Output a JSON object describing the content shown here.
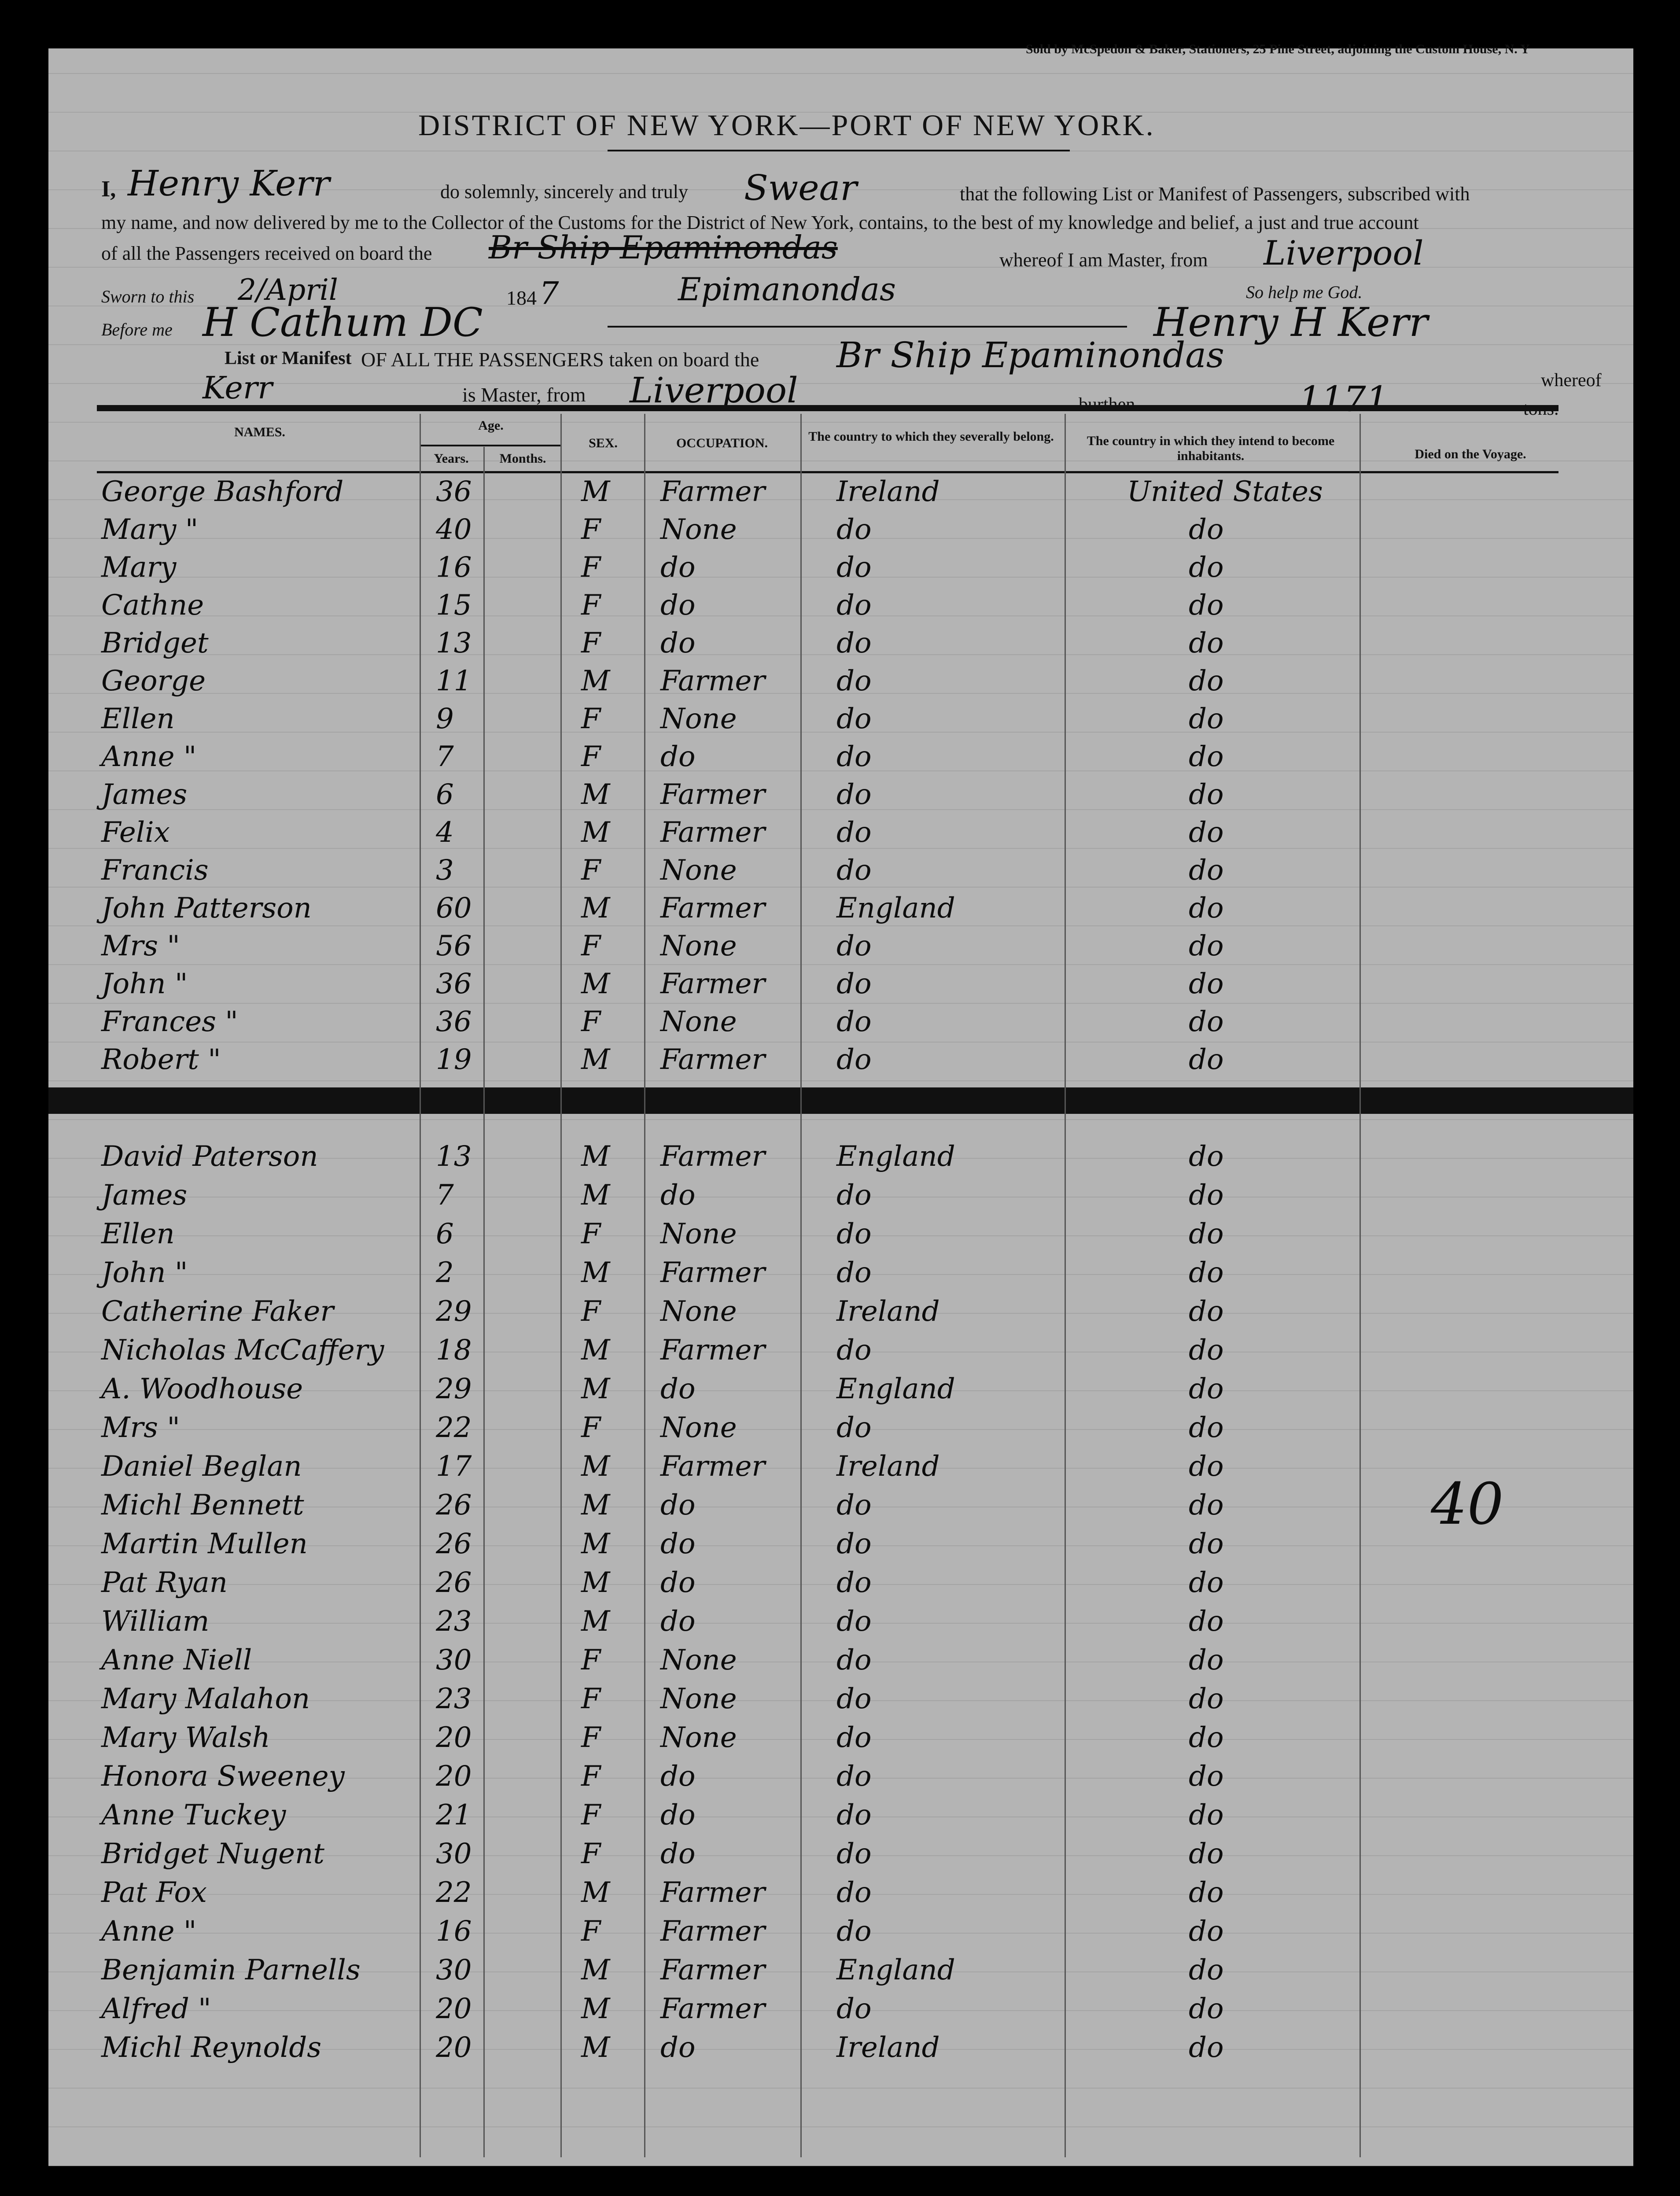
{
  "header": {
    "stationer": "Sold by McSpedon & Baker, Stationers, 25 Pine Street, adjoining the Custom House, N. Y",
    "title": "DISTRICT OF NEW YORK—PORT OF NEW YORK.",
    "oath_i": "I,",
    "master_name": "Henry Kerr",
    "oath_1": "do solemnly, sincerely and truly",
    "oath_verb": "Swear",
    "oath_2": "that the following List or Manifest of Passengers, subscribed with",
    "oath_3": "my name, and now delivered by me to the Collector of the Customs for the District of New York, contains, to the best of my knowledge and belief, a just and true account",
    "oath_4": "of all the Passengers received on board the",
    "ship_written": "Br Ship Epaminondas",
    "ship_correction": "Epimanondas",
    "oath_5": "whereof I am Master, from",
    "port_from": "Liverpool",
    "so_help": "So help me God.",
    "sworn_label": "Sworn to this",
    "sworn_date": "2/April",
    "year_prefix": "184",
    "year_written": "7",
    "before_label": "Before me",
    "before_sig": "H Cathum DC",
    "master_signature": "Henry H Kerr",
    "list_label": "List or Manifest",
    "list_1": "OF ALL THE PASSENGERS taken on board the",
    "ship_2": "Br Ship Epaminondas",
    "whereof": "whereof",
    "master_2": "Kerr",
    "is_master": "is Master, from",
    "port_2": "Liverpool",
    "burthen": "burthen",
    "tonnage": "1171",
    "tons": "tons."
  },
  "columns": {
    "names": "NAMES.",
    "age": "Age.",
    "years": "Years.",
    "months": "Months.",
    "sex": "SEX.",
    "occupation": "OCCUPATION.",
    "country_belong": "The country to which they severally belong.",
    "country_intend": "The country in which they intend to become inhabitants.",
    "died": "Died on the Voyage."
  },
  "passengers_top": [
    [
      "George Bashford",
      "36",
      "M",
      "Farmer",
      "Ireland",
      "United States"
    ],
    [
      "Mary  \"",
      "40",
      "F",
      "None",
      "do",
      "do"
    ],
    [
      "Mary",
      "16",
      "F",
      "do",
      "do",
      "do"
    ],
    [
      "Cathne",
      "15",
      "F",
      "do",
      "do",
      "do"
    ],
    [
      "Bridget",
      "13",
      "F",
      "do",
      "do",
      "do"
    ],
    [
      "George",
      "11",
      "M",
      "Farmer",
      "do",
      "do"
    ],
    [
      "Ellen",
      "9",
      "F",
      "None",
      "do",
      "do"
    ],
    [
      "Anne  \"",
      "7",
      "F",
      "do",
      "do",
      "do"
    ],
    [
      "James",
      "6",
      "M",
      "Farmer",
      "do",
      "do"
    ],
    [
      "Felix",
      "4",
      "M",
      "Farmer",
      "do",
      "do"
    ],
    [
      "Francis",
      "3",
      "F",
      "None",
      "do",
      "do"
    ],
    [
      "John Patterson",
      "60",
      "M",
      "Farmer",
      "England",
      "do"
    ],
    [
      "Mrs  \"",
      "56",
      "F",
      "None",
      "do",
      "do"
    ],
    [
      "John  \"",
      "36",
      "M",
      "Farmer",
      "do",
      "do"
    ],
    [
      "Frances  \"",
      "36",
      "F",
      "None",
      "do",
      "do"
    ],
    [
      "Robert  \"",
      "19",
      "M",
      "Farmer",
      "do",
      "do"
    ]
  ],
  "passengers_bottom": [
    [
      "David Paterson",
      "13",
      "M",
      "Farmer",
      "England",
      "do"
    ],
    [
      "James",
      "7",
      "M",
      "do",
      "do",
      "do"
    ],
    [
      "Ellen",
      "6",
      "F",
      "None",
      "do",
      "do"
    ],
    [
      "John  \"",
      "2",
      "M",
      "Farmer",
      "do",
      "do"
    ],
    [
      "Catherine Faker",
      "29",
      "F",
      "None",
      "Ireland",
      "do"
    ],
    [
      "Nicholas McCaffery",
      "18",
      "M",
      "Farmer",
      "do",
      "do"
    ],
    [
      "A. Woodhouse",
      "29",
      "M",
      "do",
      "England",
      "do"
    ],
    [
      "Mrs  \"",
      "22",
      "F",
      "None",
      "do",
      "do"
    ],
    [
      "Daniel Beglan",
      "17",
      "M",
      "Farmer",
      "Ireland",
      "do"
    ],
    [
      "Michl Bennett",
      "26",
      "M",
      "do",
      "do",
      "do"
    ],
    [
      "Martin Mullen",
      "26",
      "M",
      "do",
      "do",
      "do"
    ],
    [
      "Pat Ryan",
      "26",
      "M",
      "do",
      "do",
      "do"
    ],
    [
      "William",
      "23",
      "M",
      "do",
      "do",
      "do"
    ],
    [
      "Anne Niell",
      "30",
      "F",
      "None",
      "do",
      "do"
    ],
    [
      "Mary Malahon",
      "23",
      "F",
      "None",
      "do",
      "do"
    ],
    [
      "Mary Walsh",
      "20",
      "F",
      "None",
      "do",
      "do"
    ],
    [
      "Honora Sweeney",
      "20",
      "F",
      "do",
      "do",
      "do"
    ],
    [
      "Anne Tuckey",
      "21",
      "F",
      "do",
      "do",
      "do"
    ],
    [
      "Bridget Nugent",
      "30",
      "F",
      "do",
      "do",
      "do"
    ],
    [
      "Pat Fox",
      "22",
      "M",
      "Farmer",
      "do",
      "do"
    ],
    [
      "Anne  \"",
      "16",
      "F",
      "Farmer",
      "do",
      "do"
    ],
    [
      "Benjamin Parnells",
      "30",
      "M",
      "Farmer",
      "England",
      "do"
    ],
    [
      "Alfred  \"",
      "20",
      "M",
      "Farmer",
      "do",
      "do"
    ],
    [
      "Michl Reynolds",
      "20",
      "M",
      "do",
      "Ireland",
      "do"
    ]
  ],
  "margin_note": "40"
}
